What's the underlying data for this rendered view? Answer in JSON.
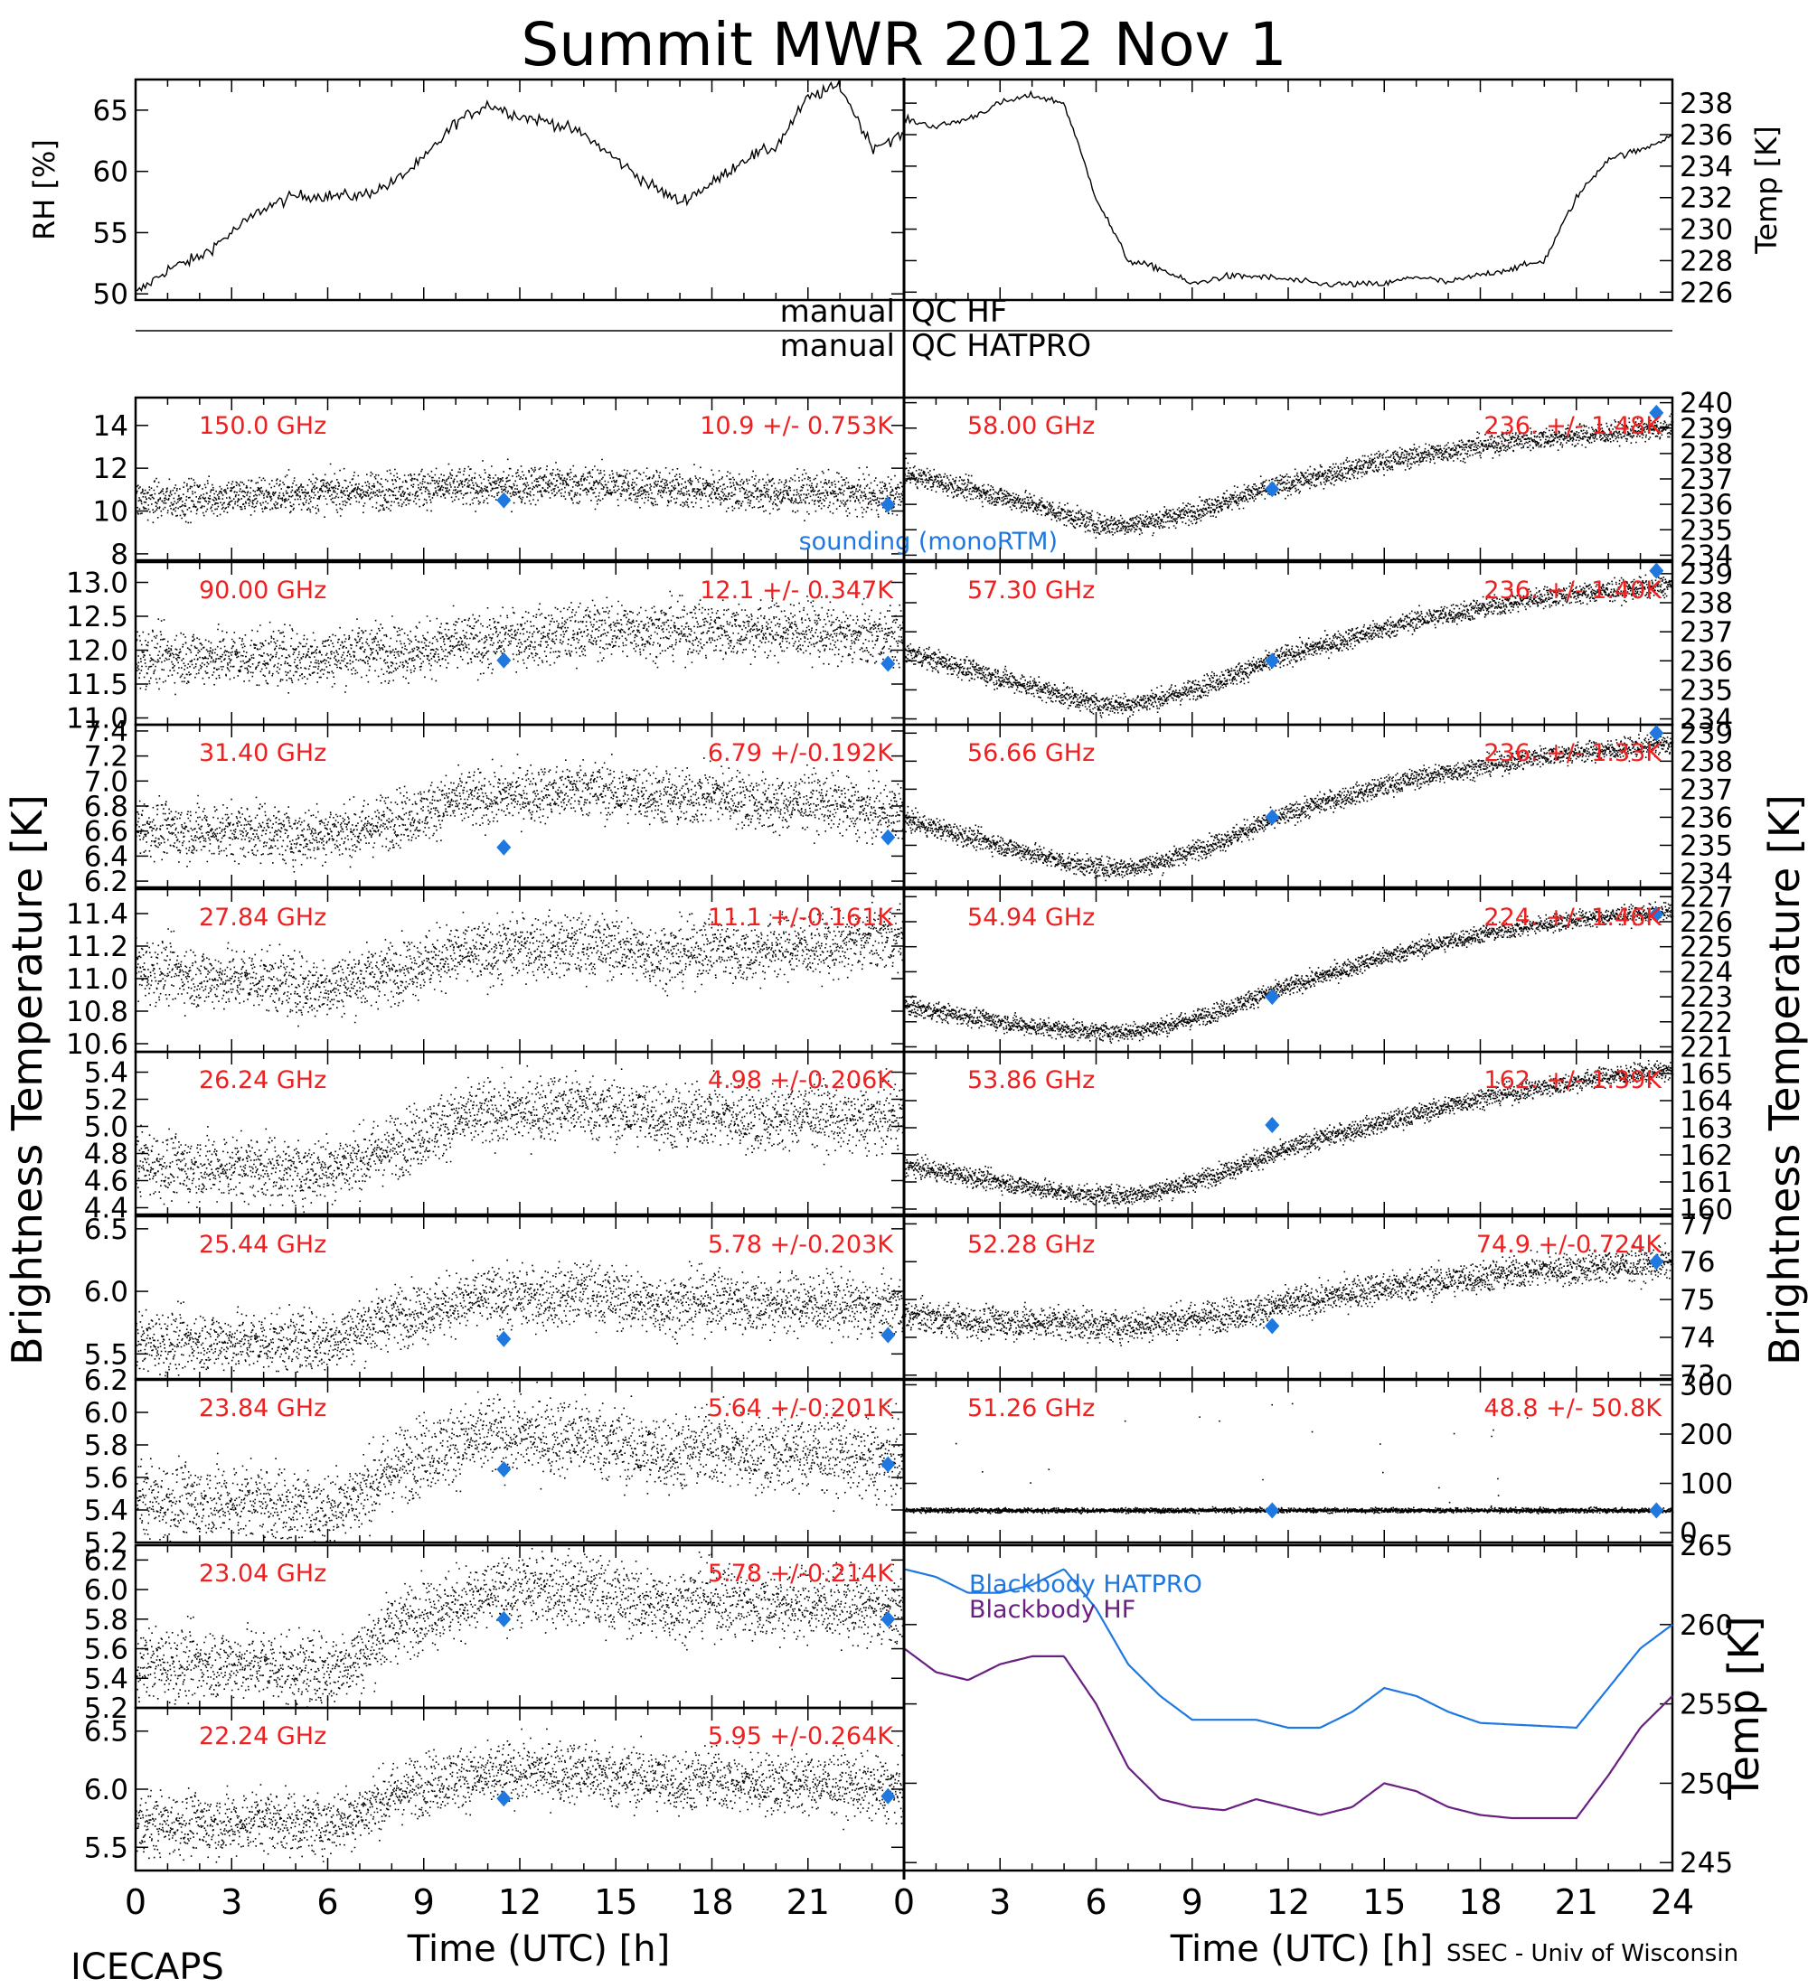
{
  "title": "Summit MWR 2012 Nov  1",
  "footer_left": "ICECAPS",
  "footer_right": "SSEC - Univ of Wisconsin",
  "qc": {
    "hf": "QC HF",
    "hatpro": "QC HATPRO",
    "left": "manual"
  },
  "colors": {
    "trace": "#000000",
    "label": "#ee2020",
    "sounding": "#1f78e0",
    "hatpro": "#1f78e0",
    "hf": "#6a1f82"
  },
  "chart_data": [
    {
      "type": "line",
      "id": "rh",
      "ylabel": "RH [%]",
      "xlim": [
        0,
        24
      ],
      "ylim": [
        49.5,
        67.5
      ],
      "yticks": [
        50,
        55,
        60,
        65
      ],
      "series": [
        {
          "values_hourly": [
            50,
            52,
            53,
            55,
            57,
            58,
            58,
            58,
            59,
            61,
            64,
            65.5,
            64.5,
            64,
            63,
            61,
            59,
            57.5,
            59,
            61,
            62,
            66,
            67,
            62,
            63
          ]
        }
      ]
    },
    {
      "type": "line",
      "id": "temp",
      "ylabel": "Temp [K]",
      "xlim": [
        0,
        24
      ],
      "ylim": [
        225.5,
        239.5
      ],
      "yticks": [
        226,
        228,
        230,
        232,
        234,
        236,
        238
      ],
      "series": [
        {
          "values_hourly": [
            237,
            236.5,
            237,
            238,
            238.5,
            238,
            232,
            228,
            227.5,
            226.5,
            227,
            227,
            226.8,
            226.5,
            226.5,
            226.5,
            227,
            226.6,
            227.1,
            227.5,
            228,
            232,
            234.5,
            235,
            236
          ]
        }
      ]
    },
    {
      "type": "scatter",
      "side": "left",
      "freq": "150.0 GHz",
      "stat": "10.9 +/- 0.753K",
      "ylim": [
        7.7,
        15.3
      ],
      "yticks": [
        8,
        10,
        12,
        14
      ],
      "ytick_labels": [
        "8",
        "10",
        "12",
        "14"
      ],
      "trend_hourly": [
        10.5,
        10.5,
        10.6,
        10.7,
        10.7,
        10.8,
        10.9,
        10.9,
        11,
        11.1,
        11.1,
        11.1,
        11.2,
        11.3,
        11.2,
        11.2,
        11.1,
        11,
        11,
        10.9,
        10.8,
        10.9,
        10.8,
        10.7,
        10.7
      ],
      "noise": 0.75,
      "sounding": [
        {
          "x": 11.5,
          "y": 10.5
        },
        {
          "x": 23.5,
          "y": 10.3
        }
      ],
      "note": "sounding (monoRTM)"
    },
    {
      "type": "scatter",
      "side": "left",
      "freq": "90.00 GHz",
      "stat": "12.1 +/- 0.347K",
      "ylim": [
        10.9,
        13.3
      ],
      "yticks": [
        11,
        11.5,
        12,
        12.5,
        13
      ],
      "ytick_labels": [
        "11.0",
        "11.5",
        "12.0",
        "12.5",
        "13.0"
      ],
      "trend_hourly": [
        11.9,
        11.9,
        11.9,
        11.9,
        11.9,
        11.9,
        11.9,
        12,
        12,
        12,
        12.1,
        12.1,
        12.2,
        12.2,
        12.3,
        12.3,
        12.3,
        12.3,
        12.3,
        12.3,
        12.3,
        12.3,
        12.2,
        12.2,
        12.2
      ],
      "noise": 0.35,
      "sounding": [
        {
          "x": 11.5,
          "y": 11.85
        },
        {
          "x": 23.5,
          "y": 11.8
        }
      ]
    },
    {
      "type": "scatter",
      "side": "left",
      "freq": "31.40 GHz",
      "stat": "6.79 +/-0.192K",
      "ylim": [
        6.15,
        7.45
      ],
      "yticks": [
        6.2,
        6.4,
        6.6,
        6.8,
        7.0,
        7.2,
        7.4
      ],
      "ytick_labels": [
        "6.2",
        "6.4",
        "6.6",
        "6.8",
        "7.0",
        "7.2",
        "7.4"
      ],
      "trend_hourly": [
        6.65,
        6.6,
        6.6,
        6.6,
        6.6,
        6.55,
        6.6,
        6.6,
        6.7,
        6.75,
        6.85,
        6.85,
        6.9,
        6.9,
        6.95,
        6.9,
        6.9,
        6.85,
        6.9,
        6.85,
        6.8,
        6.85,
        6.8,
        6.75,
        6.75
      ],
      "noise": 0.19,
      "sounding": [
        {
          "x": 11.5,
          "y": 6.47
        },
        {
          "x": 23.5,
          "y": 6.55
        }
      ]
    },
    {
      "type": "scatter",
      "side": "left",
      "freq": "27.84 GHz",
      "stat": "11.1 +/-0.161K",
      "ylim": [
        10.55,
        11.55
      ],
      "yticks": [
        10.6,
        10.8,
        11.0,
        11.2,
        11.4
      ],
      "ytick_labels": [
        "10.6",
        "10.8",
        "11.0",
        "11.2",
        "11.4"
      ],
      "trend_hourly": [
        11.05,
        11.05,
        11.0,
        11.0,
        11.0,
        10.95,
        10.95,
        11.0,
        11.05,
        11.1,
        11.15,
        11.15,
        11.2,
        11.2,
        11.2,
        11.2,
        11.15,
        11.15,
        11.2,
        11.15,
        11.2,
        11.2,
        11.2,
        11.25,
        11.25
      ],
      "noise": 0.16,
      "sounding": []
    },
    {
      "type": "scatter",
      "side": "left",
      "freq": "26.24 GHz",
      "stat": "4.98 +/-0.206K",
      "ylim": [
        4.35,
        5.55
      ],
      "yticks": [
        4.4,
        4.6,
        4.8,
        5.0,
        5.2,
        5.4
      ],
      "ytick_labels": [
        "4.4",
        "4.6",
        "4.8",
        "5.0",
        "5.2",
        "5.4"
      ],
      "trend_hourly": [
        4.75,
        4.7,
        4.7,
        4.7,
        4.7,
        4.65,
        4.7,
        4.75,
        4.85,
        4.95,
        5.05,
        5.1,
        5.1,
        5.15,
        5.15,
        5.1,
        5.1,
        5.05,
        5.1,
        5.05,
        5.05,
        5.1,
        5.05,
        5.05,
        5.1
      ],
      "noise": 0.2,
      "sounding": []
    },
    {
      "type": "scatter",
      "side": "left",
      "freq": "25.44 GHz",
      "stat": "5.78 +/-0.203K",
      "ylim": [
        5.3,
        6.6
      ],
      "yticks": [
        5.5,
        6.0,
        6.5
      ],
      "ytick_labels": [
        "5.5",
        "6.0",
        "6.5"
      ],
      "trend_hourly": [
        5.6,
        5.6,
        5.6,
        5.6,
        5.6,
        5.6,
        5.6,
        5.7,
        5.8,
        5.85,
        5.9,
        5.95,
        5.95,
        5.95,
        6.0,
        5.95,
        5.9,
        5.9,
        5.95,
        5.9,
        5.9,
        5.9,
        5.9,
        5.85,
        5.9
      ],
      "noise": 0.2,
      "sounding": [
        {
          "x": 11.5,
          "y": 5.62
        },
        {
          "x": 23.5,
          "y": 5.65
        }
      ]
    },
    {
      "type": "scatter",
      "side": "left",
      "freq": "23.84 GHz",
      "stat": "5.64 +/-0.201K",
      "ylim": [
        5.2,
        6.2
      ],
      "yticks": [
        5.2,
        5.4,
        5.6,
        5.8,
        6.0,
        6.2
      ],
      "ytick_labels": [
        "5.2",
        "5.4",
        "5.6",
        "5.8",
        "6.0",
        "6.2"
      ],
      "trend_hourly": [
        5.45,
        5.45,
        5.45,
        5.45,
        5.45,
        5.4,
        5.4,
        5.5,
        5.65,
        5.75,
        5.8,
        5.85,
        5.85,
        5.85,
        5.85,
        5.8,
        5.75,
        5.75,
        5.8,
        5.75,
        5.75,
        5.75,
        5.75,
        5.7,
        5.7
      ],
      "noise": 0.2,
      "sounding": [
        {
          "x": 11.5,
          "y": 5.65
        },
        {
          "x": 23.5,
          "y": 5.68
        }
      ]
    },
    {
      "type": "scatter",
      "side": "left",
      "freq": "23.04 GHz",
      "stat": "5.78 +/-0.214K",
      "ylim": [
        5.2,
        6.3
      ],
      "yticks": [
        5.2,
        5.4,
        5.6,
        5.8,
        6.0,
        6.2
      ],
      "ytick_labels": [
        "5.2",
        "5.4",
        "5.6",
        "5.8",
        "6.0",
        "6.2"
      ],
      "trend_hourly": [
        5.5,
        5.5,
        5.5,
        5.5,
        5.5,
        5.45,
        5.45,
        5.55,
        5.75,
        5.85,
        5.9,
        5.95,
        6.0,
        6.0,
        6.0,
        5.95,
        5.9,
        5.9,
        5.95,
        5.9,
        5.9,
        5.9,
        5.9,
        5.85,
        5.85
      ],
      "noise": 0.2,
      "sounding": [
        {
          "x": 11.5,
          "y": 5.8
        },
        {
          "x": 23.5,
          "y": 5.8
        }
      ]
    },
    {
      "type": "scatter",
      "side": "left",
      "freq": "22.24 GHz",
      "stat": "5.95 +/-0.264K",
      "ylim": [
        5.3,
        6.7
      ],
      "yticks": [
        5.5,
        6.0,
        6.5
      ],
      "ytick_labels": [
        "5.5",
        "6.0",
        "6.5"
      ],
      "trend_hourly": [
        5.7,
        5.7,
        5.7,
        5.7,
        5.75,
        5.7,
        5.7,
        5.8,
        5.95,
        6.05,
        6.1,
        6.1,
        6.15,
        6.15,
        6.15,
        6.1,
        6.1,
        6.05,
        6.1,
        6.05,
        6.05,
        6.05,
        6.05,
        6.0,
        6.0
      ],
      "noise": 0.22,
      "sounding": [
        {
          "x": 11.5,
          "y": 5.92
        },
        {
          "x": 23.5,
          "y": 5.94
        }
      ]
    },
    {
      "type": "scatter",
      "side": "right",
      "freq": "58.00 GHz",
      "stat": "236. +/- 1.48K",
      "ylim": [
        233.8,
        240.2
      ],
      "yticks": [
        234,
        235,
        236,
        237,
        238,
        239,
        240
      ],
      "ytick_labels": [
        "234",
        "235",
        "236",
        "237",
        "238",
        "239",
        "240"
      ],
      "trend_hourly": [
        237.2,
        236.9,
        236.6,
        236.3,
        236,
        235.6,
        235.2,
        235.2,
        235.4,
        235.7,
        236.1,
        236.5,
        236.8,
        237.1,
        237.4,
        237.7,
        237.9,
        238.1,
        238.3,
        238.5,
        238.6,
        238.7,
        238.8,
        238.9,
        239
      ],
      "noise": 0.35,
      "sounding": [
        {
          "x": 11.5,
          "y": 236.6
        },
        {
          "x": 23.5,
          "y": 239.6
        }
      ]
    },
    {
      "type": "scatter",
      "side": "right",
      "freq": "57.30 GHz",
      "stat": "236. +/- 1.40K",
      "ylim": [
        233.8,
        239.4
      ],
      "yticks": [
        234,
        235,
        236,
        237,
        238,
        239
      ],
      "ytick_labels": [
        "234",
        "235",
        "236",
        "237",
        "238",
        "239"
      ],
      "trend_hourly": [
        236.3,
        236,
        235.7,
        235.4,
        235.1,
        234.8,
        234.5,
        234.5,
        234.7,
        235,
        235.4,
        235.8,
        236.2,
        236.5,
        236.8,
        237.1,
        237.4,
        237.6,
        237.8,
        238,
        238.2,
        238.3,
        238.4,
        238.5,
        238.6
      ],
      "noise": 0.3,
      "sounding": [
        {
          "x": 11.5,
          "y": 236
        },
        {
          "x": 23.5,
          "y": 239.1
        }
      ]
    },
    {
      "type": "scatter",
      "side": "right",
      "freq": "56.66 GHz",
      "stat": "236. +/- 1.33K",
      "ylim": [
        233.5,
        239.3
      ],
      "yticks": [
        234,
        235,
        236,
        237,
        238,
        239
      ],
      "ytick_labels": [
        "234",
        "235",
        "236",
        "237",
        "238",
        "239"
      ],
      "trend_hourly": [
        235.9,
        235.6,
        235.3,
        235,
        234.7,
        234.4,
        234.2,
        234.2,
        234.4,
        234.8,
        235.2,
        235.7,
        236.1,
        236.5,
        236.8,
        237.1,
        237.4,
        237.6,
        237.8,
        238,
        238.2,
        238.3,
        238.4,
        238.5,
        238.6
      ],
      "noise": 0.3,
      "sounding": [
        {
          "x": 11.5,
          "y": 236
        },
        {
          "x": 23.5,
          "y": 239
        }
      ]
    },
    {
      "type": "scatter",
      "side": "right",
      "freq": "54.94 GHz",
      "stat": "224. +/- 1.46K",
      "ylim": [
        220.8,
        227.3
      ],
      "yticks": [
        221,
        222,
        223,
        224,
        225,
        226,
        227
      ],
      "ytick_labels": [
        "221",
        "222",
        "223",
        "224",
        "225",
        "226",
        "227"
      ],
      "trend_hourly": [
        222.6,
        222.4,
        222.2,
        222,
        221.8,
        221.7,
        221.6,
        221.6,
        221.8,
        222.1,
        222.5,
        223,
        223.4,
        223.8,
        224.2,
        224.6,
        224.9,
        225.2,
        225.5,
        225.7,
        225.9,
        226.1,
        226.2,
        226.3,
        226.4
      ],
      "noise": 0.3,
      "sounding": [
        {
          "x": 11.5,
          "y": 223
        },
        {
          "x": 23.5,
          "y": 226.3
        }
      ]
    },
    {
      "type": "scatter",
      "side": "right",
      "freq": "53.86 GHz",
      "stat": "162. +/- 1.39K",
      "ylim": [
        159.8,
        165.8
      ],
      "yticks": [
        160,
        161,
        162,
        163,
        164,
        165
      ],
      "ytick_labels": [
        "160",
        "161",
        "162",
        "163",
        "164",
        "165"
      ],
      "trend_hourly": [
        161.6,
        161.4,
        161.2,
        161,
        160.8,
        160.6,
        160.5,
        160.5,
        160.7,
        161,
        161.4,
        161.8,
        162.2,
        162.6,
        162.9,
        163.2,
        163.5,
        163.8,
        164.1,
        164.3,
        164.5,
        164.7,
        164.9,
        165,
        165.1
      ],
      "noise": 0.3,
      "sounding": [
        {
          "x": 11.5,
          "y": 163.1
        }
      ]
    },
    {
      "type": "scatter",
      "side": "right",
      "freq": "52.28 GHz",
      "stat": "74.9 +/-0.724K",
      "ylim": [
        72.9,
        77.2
      ],
      "yticks": [
        73,
        74,
        75,
        76,
        77
      ],
      "ytick_labels": [
        "73",
        "74",
        "75",
        "76",
        "77"
      ],
      "trend_hourly": [
        74.6,
        74.5,
        74.4,
        74.4,
        74.4,
        74.4,
        74.3,
        74.3,
        74.4,
        74.5,
        74.6,
        74.7,
        74.9,
        75,
        75.2,
        75.3,
        75.4,
        75.5,
        75.6,
        75.7,
        75.8,
        75.8,
        75.9,
        75.9,
        76
      ],
      "noise": 0.35,
      "sounding": [
        {
          "x": 11.5,
          "y": 74.3
        },
        {
          "x": 23.5,
          "y": 76
        }
      ]
    },
    {
      "type": "scatter",
      "side": "right",
      "freq": "51.26 GHz",
      "stat": "48.8 +/- 50.8K",
      "ylim": [
        -20,
        310
      ],
      "yticks": [
        0,
        100,
        200,
        300
      ],
      "ytick_labels": [
        "0",
        "100",
        "200",
        "300"
      ],
      "trend_hourly": [
        45,
        45,
        45,
        45,
        45,
        45,
        45,
        45,
        45,
        45,
        45,
        45,
        45,
        45,
        45,
        45,
        45,
        45,
        45,
        45,
        45,
        45,
        45,
        45,
        45
      ],
      "noise": 4,
      "spikes": true,
      "sounding": [
        {
          "x": 11.5,
          "y": 45
        },
        {
          "x": 23.5,
          "y": 45
        }
      ]
    },
    {
      "type": "line",
      "id": "blackbody",
      "ylabel": "Temp [K]",
      "xlim": [
        0,
        24
      ],
      "ylim": [
        244.5,
        265
      ],
      "yticks": [
        245,
        250,
        255,
        260,
        265
      ],
      "series": [
        {
          "name": "Blackbody HATPRO",
          "color": "#1f78e0",
          "values_hourly": [
            263.5,
            263,
            262,
            262,
            262.5,
            263.5,
            261,
            257.5,
            255.5,
            254,
            254,
            254,
            253.5,
            253.5,
            254.5,
            256,
            255.5,
            254.5,
            253.8,
            253.7,
            253.6,
            253.5,
            256,
            258.5,
            260
          ]
        },
        {
          "name": "Blackbody HF",
          "color": "#6a1f82",
          "values_hourly": [
            258.5,
            257,
            256.5,
            257.5,
            258,
            258,
            255,
            251,
            249,
            248.5,
            248.3,
            249,
            248.5,
            248,
            248.5,
            250,
            249.5,
            248.5,
            248,
            247.8,
            247.8,
            247.8,
            250.5,
            253.5,
            255.5
          ]
        }
      ]
    }
  ],
  "xaxis": {
    "label": "Time (UTC) [h]",
    "ticks": [
      0,
      3,
      6,
      9,
      12,
      15,
      18,
      21,
      24
    ],
    "tick_labels_left": [
      "0",
      "3",
      "6",
      "9",
      "12",
      "15",
      "18",
      "21"
    ],
    "tick_labels_right": [
      "0",
      "3",
      "6",
      "9",
      "12",
      "15",
      "18",
      "21",
      "24"
    ]
  },
  "y_titles": {
    "left": "Brightness Temperature [K]",
    "right": "Brightness Temperature [K]"
  }
}
